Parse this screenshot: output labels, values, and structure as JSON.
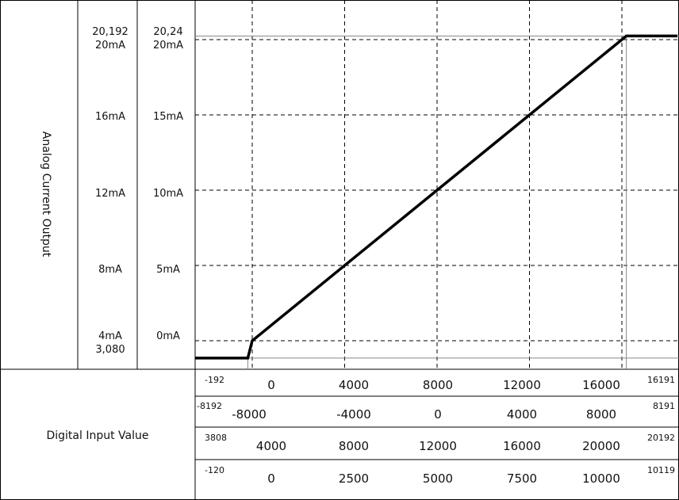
{
  "chart_data": {
    "type": "line",
    "ylabel": "Analog Current Output",
    "xlabel": "Digital Input Value",
    "points": [
      {
        "x": -192,
        "y": 3.08
      },
      {
        "x": 0,
        "y": 4
      },
      {
        "x": 16000,
        "y": 20
      },
      {
        "x": 16191,
        "y": 20.192
      }
    ],
    "x_range": [
      -192,
      16191
    ],
    "y_range": [
      3.08,
      20.192
    ],
    "output_scales": [
      {
        "top": "20,192",
        "labels": [
          "20mA",
          "16mA",
          "12mA",
          "8mA",
          "4mA"
        ],
        "bottom": "3,080"
      },
      {
        "top": "20,24",
        "labels": [
          "20mA",
          "15mA",
          "10mA",
          "5mA",
          "0mA"
        ],
        "bottom": ""
      }
    ],
    "input_scales": [
      {
        "start": "-192",
        "values": [
          "0",
          "4000",
          "8000",
          "12000",
          "16000"
        ],
        "end": "16191"
      },
      {
        "start": "-8192",
        "values": [
          "-8000",
          "-4000",
          "0",
          "4000",
          "8000"
        ],
        "end": "8191"
      },
      {
        "start": "3808",
        "values": [
          "4000",
          "8000",
          "12000",
          "16000",
          "20000"
        ],
        "end": "20192"
      },
      {
        "start": "-120",
        "values": [
          "0",
          "2500",
          "5000",
          "7500",
          "10000"
        ],
        "end": "10119"
      }
    ],
    "grid": "dashed"
  }
}
